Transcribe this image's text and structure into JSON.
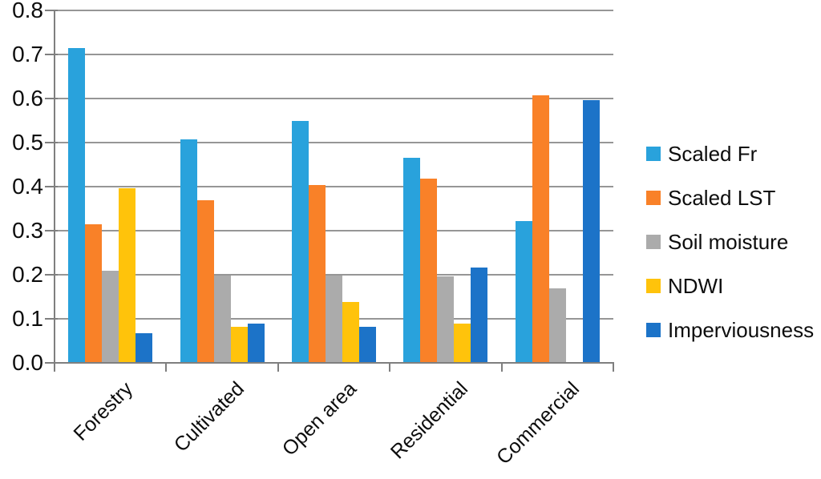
{
  "chart_data": {
    "type": "bar",
    "title": "",
    "xlabel": "",
    "ylabel": "",
    "categories": [
      "Forestry",
      "Cultivated",
      "Open area",
      "Residential",
      "Commercial"
    ],
    "series": [
      {
        "name": "Scaled Fr",
        "color": "#29A2DC",
        "values": [
          0.715,
          0.508,
          0.549,
          0.465,
          0.321
        ]
      },
      {
        "name": "Scaled LST",
        "color": "#F98128",
        "values": [
          0.315,
          0.369,
          0.404,
          0.418,
          0.607
        ]
      },
      {
        "name": "Soil moisture",
        "color": "#ABABAB",
        "values": [
          0.209,
          0.199,
          0.198,
          0.196,
          0.169
        ]
      },
      {
        "name": "NDWI",
        "color": "#FFC30B",
        "values": [
          0.397,
          0.082,
          0.139,
          0.09,
          0.0
        ]
      },
      {
        "name": "Imperviousness",
        "color": "#1C73C8",
        "values": [
          0.068,
          0.09,
          0.082,
          0.216,
          0.597
        ]
      }
    ],
    "ylim": [
      0,
      0.8
    ],
    "ytick_step": 0.1,
    "yticks": [
      "0.0",
      "0.1",
      "0.2",
      "0.3",
      "0.4",
      "0.5",
      "0.6",
      "0.7",
      "0.8"
    ],
    "grid": true,
    "legend_position": "right",
    "axis_color": "#7f7f7f",
    "gridline_color": "#969696",
    "text_color": "#0d0d0d"
  }
}
